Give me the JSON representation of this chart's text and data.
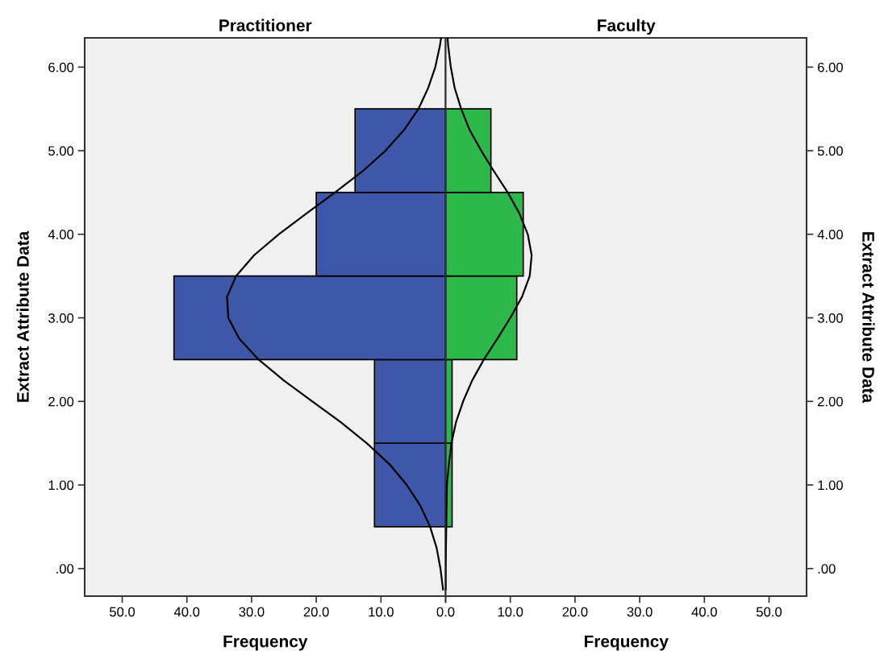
{
  "chart_data": [
    {
      "type": "histogram",
      "orientation": "horizontal",
      "title": "Practitioner",
      "xlabel": "Frequency",
      "ylabel": "Extract Attribute Data",
      "grid": false,
      "legend": false,
      "xlim": [
        55.8,
        0
      ],
      "xticks": [
        {
          "value": 50,
          "label": "50.0"
        },
        {
          "value": 40,
          "label": "40.0"
        },
        {
          "value": 30,
          "label": "30.0"
        },
        {
          "value": 20,
          "label": "20.0"
        },
        {
          "value": 10,
          "label": "10.0"
        },
        {
          "value": 0,
          "label": "0.0"
        }
      ],
      "ylim": [
        -0.33,
        6.35
      ],
      "yticks": [
        {
          "value": 0,
          "label": ".00"
        },
        {
          "value": 1,
          "label": "1.00"
        },
        {
          "value": 2,
          "label": "2.00"
        },
        {
          "value": 3,
          "label": "3.00"
        },
        {
          "value": 4,
          "label": "4.00"
        },
        {
          "value": 5,
          "label": "5.00"
        },
        {
          "value": 6,
          "label": "6.00"
        }
      ],
      "series": [
        {
          "type": "histogram",
          "color": "#3f57a8",
          "bins": [
            0.5,
            1.5,
            2.5,
            3.5,
            4.5,
            5.5
          ],
          "values": [
            11,
            11,
            42,
            20,
            14
          ]
        },
        {
          "type": "line",
          "color": "#000000",
          "x": [
            -0.25,
            0,
            0.25,
            0.5,
            0.75,
            1,
            1.25,
            1.5,
            1.75,
            2,
            2.25,
            2.5,
            2.75,
            3,
            3.25,
            3.5,
            3.75,
            4,
            4.25,
            4.5,
            4.75,
            5,
            5.25,
            5.5,
            5.75,
            6,
            6.25,
            6.35
          ],
          "values": [
            0.4,
            0.8,
            1.4,
            2.4,
            3.9,
            6.0,
            8.7,
            12.2,
            16.2,
            20.6,
            25.0,
            28.9,
            31.9,
            33.6,
            33.8,
            32.4,
            29.6,
            25.8,
            21.5,
            17.1,
            12.9,
            9.3,
            6.4,
            4.2,
            2.7,
            1.6,
            0.9,
            0.7
          ]
        }
      ]
    },
    {
      "type": "histogram",
      "orientation": "horizontal",
      "title": "Faculty",
      "xlabel": "Frequency",
      "ylabel": "Extract Attribute Data",
      "grid": false,
      "legend": false,
      "xlim": [
        0,
        55.8
      ],
      "xticks": [
        {
          "value": 0,
          "label": null
        },
        {
          "value": 10,
          "label": "10.0"
        },
        {
          "value": 20,
          "label": "20.0"
        },
        {
          "value": 30,
          "label": "30.0"
        },
        {
          "value": 40,
          "label": "40.0"
        },
        {
          "value": 50,
          "label": "50.0"
        }
      ],
      "ylim": [
        -0.33,
        6.35
      ],
      "yticks": [
        {
          "value": 0,
          "label": ".00"
        },
        {
          "value": 1,
          "label": "1.00"
        },
        {
          "value": 2,
          "label": "2.00"
        },
        {
          "value": 3,
          "label": "3.00"
        },
        {
          "value": 4,
          "label": "4.00"
        },
        {
          "value": 5,
          "label": "5.00"
        },
        {
          "value": 6,
          "label": "6.00"
        }
      ],
      "series": [
        {
          "type": "histogram",
          "color": "#2db84a",
          "bins": [
            0.5,
            1.5,
            2.5,
            3.5,
            4.5,
            5.5
          ],
          "values": [
            1,
            1,
            11,
            12,
            7
          ]
        },
        {
          "type": "line",
          "color": "#000000",
          "x": [
            -0.25,
            0,
            0.5,
            1,
            1.25,
            1.5,
            1.75,
            2,
            2.25,
            2.5,
            2.75,
            3,
            3.25,
            3.5,
            3.75,
            4,
            4.25,
            4.5,
            4.75,
            5,
            5.25,
            5.5,
            5.75,
            6,
            6.25,
            6.35
          ],
          "values": [
            0.0,
            0.0,
            0.1,
            0.2,
            0.5,
            0.9,
            1.6,
            2.7,
            4.1,
            5.9,
            8.0,
            10.0,
            11.8,
            13.0,
            13.3,
            12.7,
            11.4,
            9.6,
            7.5,
            5.5,
            3.7,
            2.4,
            1.4,
            0.8,
            0.4,
            0.3
          ]
        }
      ]
    }
  ]
}
